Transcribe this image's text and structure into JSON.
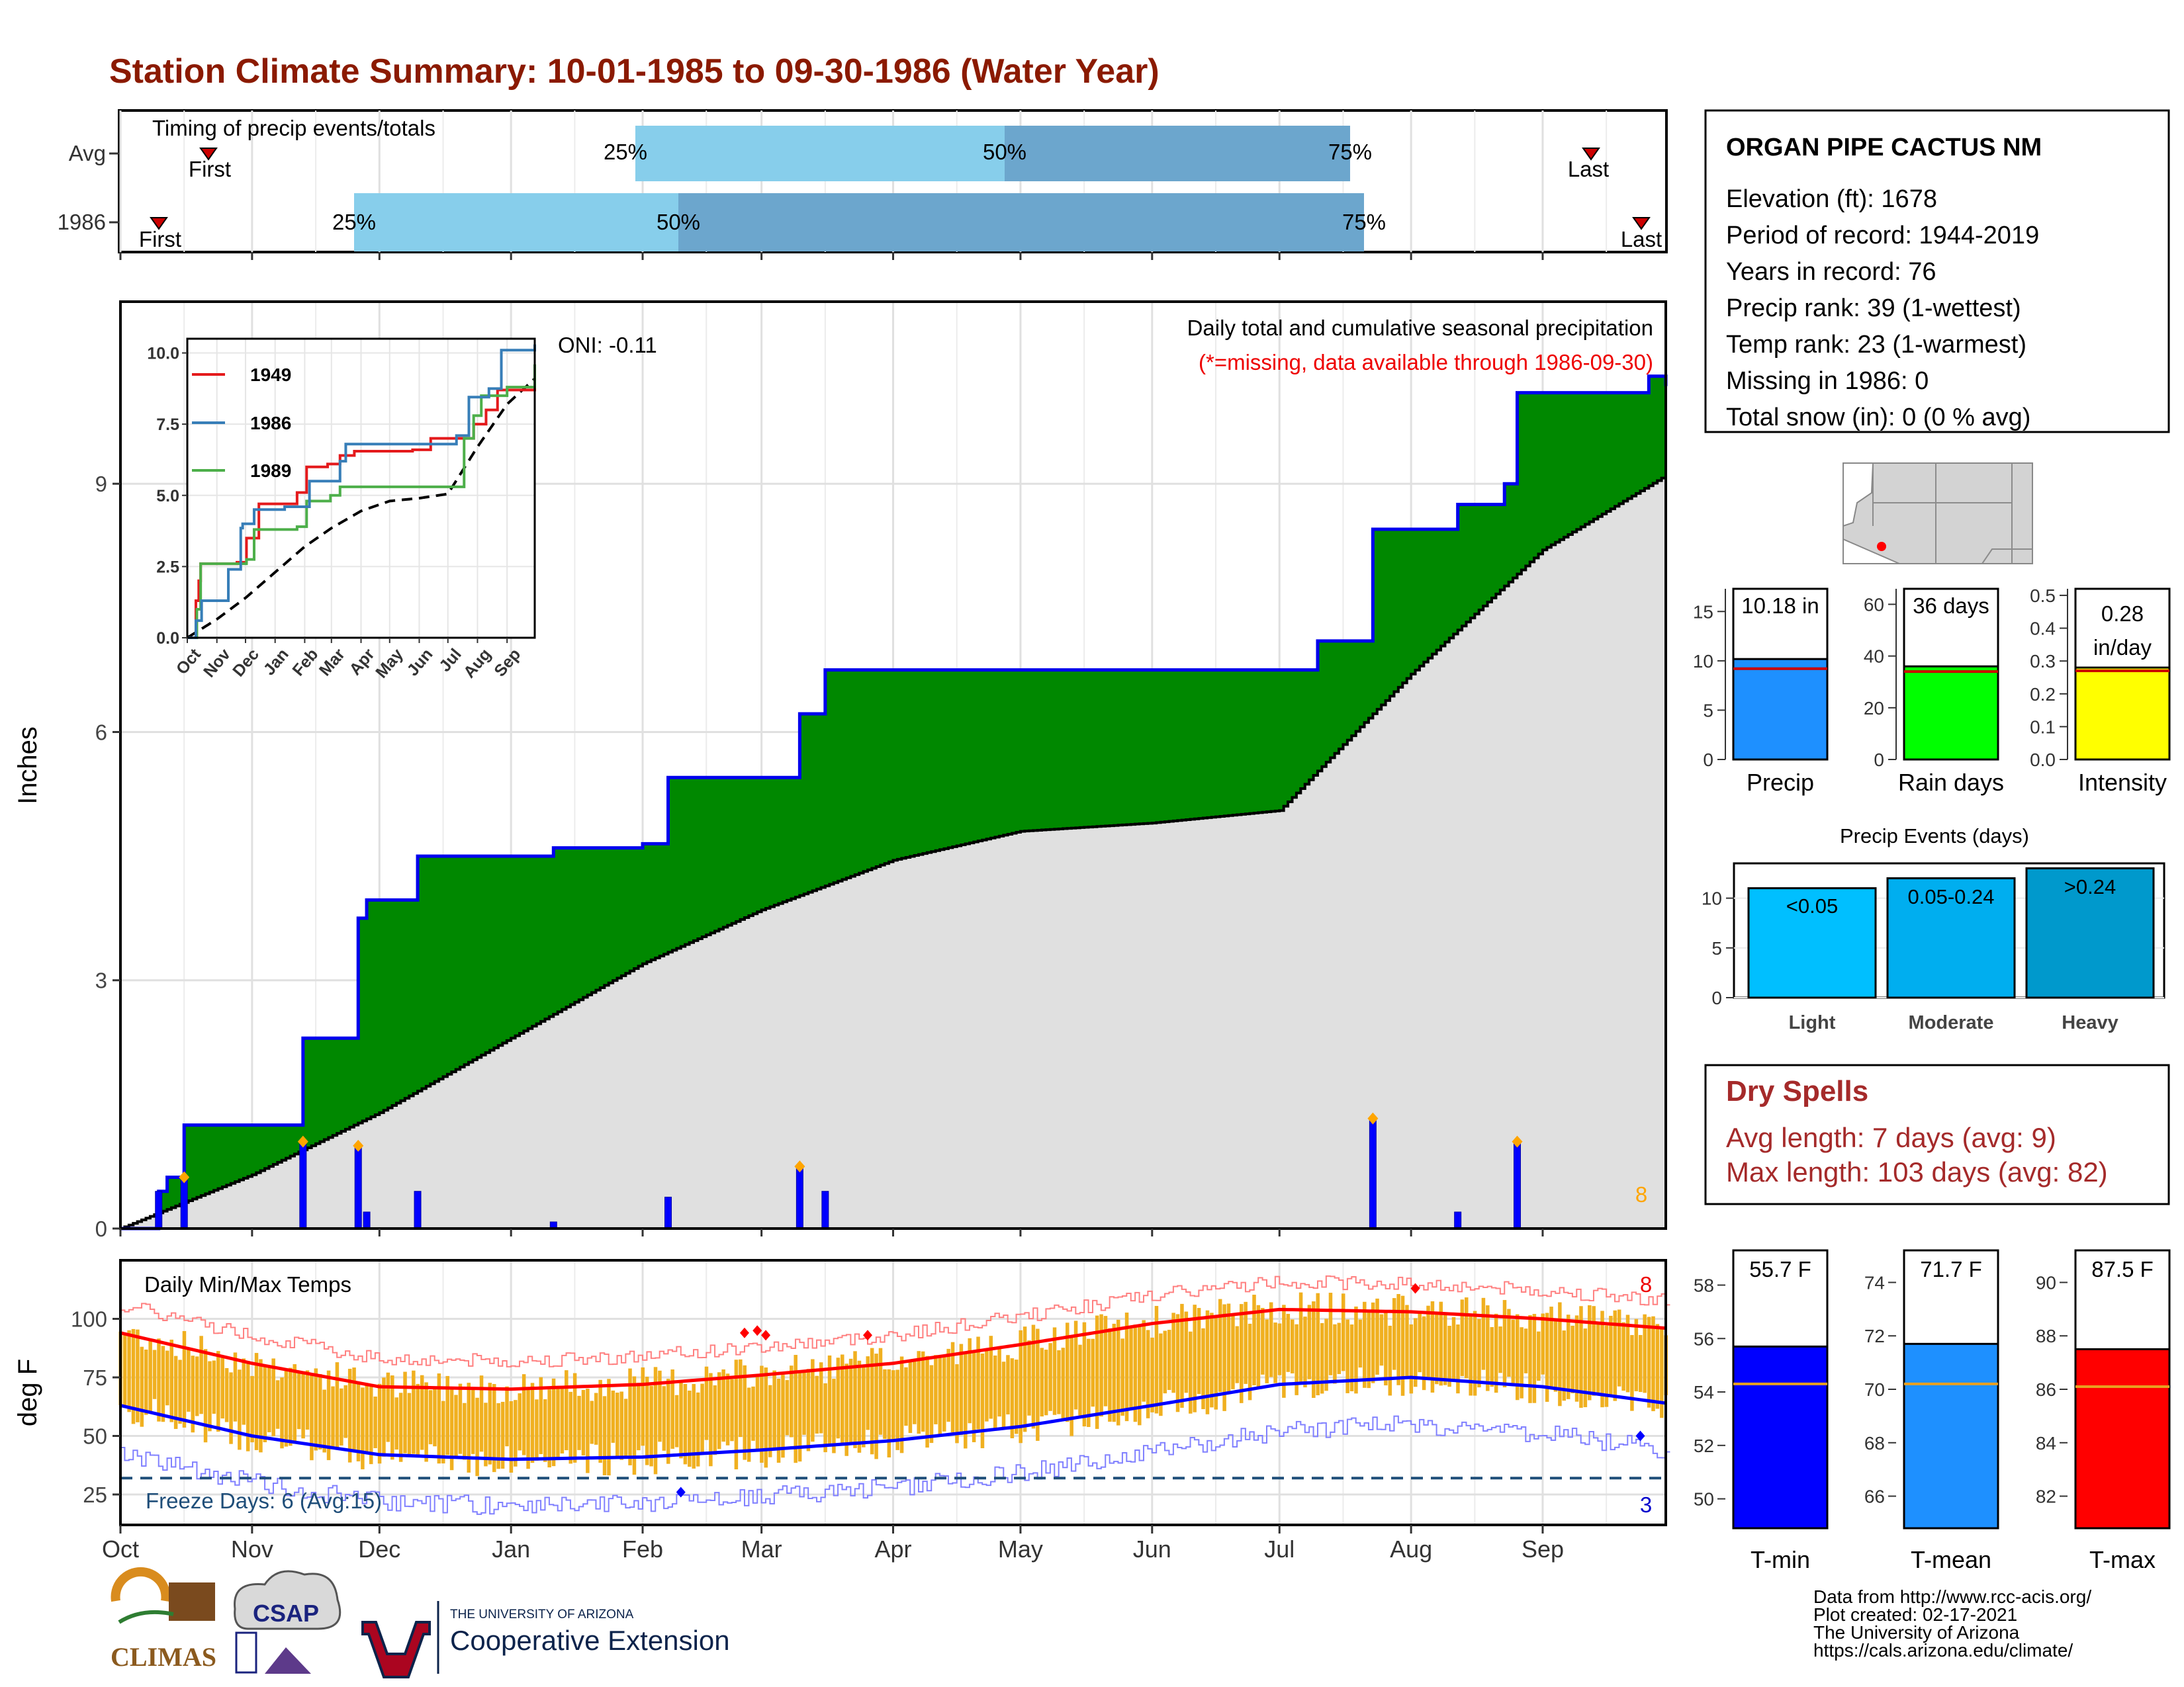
{
  "title": "Station Climate Summary: 10-01-1985 to 09-30-1986 (Water Year)",
  "timing": {
    "label": "Timing of precip events/totals",
    "rows": [
      {
        "name": "Avg",
        "first_label": "First",
        "last_label": "Last",
        "p25": "25%",
        "p50": "50%",
        "p75": "75%"
      },
      {
        "name": "1986",
        "first_label": "First",
        "last_label": "Last",
        "p25": "25%",
        "p50": "50%",
        "p75": "75%"
      }
    ]
  },
  "station": {
    "name": "ORGAN PIPE CACTUS NM",
    "lines": [
      "Elevation (ft): 1678",
      "Period of record: 1944-2019",
      "Years in record: 76",
      "Precip rank: 39 (1-wettest)",
      "Temp rank: 23 (1-warmest)",
      "Missing in 1986: 0",
      "Total snow (in): 0 (0 % avg)"
    ]
  },
  "precip_panel": {
    "ylabel": "Inches",
    "caption": "Daily total and cumulative seasonal precipitation",
    "missing_note": "(*=missing, data available through 1986-09-30)",
    "oni": "ONI: -0.11",
    "extreme_count": "8"
  },
  "inset": {
    "series": [
      {
        "name": "1949",
        "color": "#e41a1c"
      },
      {
        "name": "1986",
        "color": "#377eb8"
      },
      {
        "name": "1989",
        "color": "#4daf4a"
      }
    ],
    "months": [
      "Oct",
      "Nov",
      "Dec",
      "Jan",
      "Feb",
      "Mar",
      "Apr",
      "May",
      "Jun",
      "Jul",
      "Aug",
      "Sep"
    ]
  },
  "temp_panel": {
    "ylabel": "deg F",
    "label": "Daily Min/Max Temps",
    "freeze": "Freeze Days: 6 (Avg:15)",
    "max_count": "8",
    "min_count": "3"
  },
  "months": [
    "Oct",
    "Nov",
    "Dec",
    "Jan",
    "Feb",
    "Mar",
    "Apr",
    "May",
    "Jun",
    "Jul",
    "Aug",
    "Sep"
  ],
  "summary_bars": {
    "precip": {
      "label": "Precip",
      "value_label": "10.18 in",
      "value": 10.18,
      "avg": 9.2,
      "color": "#1e90ff"
    },
    "rain_days": {
      "label": "Rain days",
      "value_label": "36 days",
      "value": 36,
      "avg": 34,
      "color": "#00ff00"
    },
    "intensity": {
      "label": "Intensity",
      "value_label_1": "0.28",
      "value_label_2": "in/day",
      "value": 0.28,
      "avg": 0.27,
      "color": "#ffff00"
    }
  },
  "events": {
    "title": "Precip Events (days)",
    "bars": [
      {
        "name": "Light",
        "label": "<0.05",
        "value": 11,
        "color": "#00bfff"
      },
      {
        "name": "Moderate",
        "label": "0.05-0.24",
        "value": 12,
        "color": "#00aeef"
      },
      {
        "name": "Heavy",
        "label": ">0.24",
        "value": 13,
        "color": "#0099cc"
      }
    ]
  },
  "dry_spells": {
    "title": "Dry Spells",
    "avg": "Avg length: 7 days (avg: 9)",
    "max": "Max length: 103 days (avg: 82)"
  },
  "temp_bars": [
    {
      "name": "T-min",
      "label": "55.7 F",
      "value": 55.7,
      "avg": 54.3,
      "color": "#0000ff"
    },
    {
      "name": "T-mean",
      "label": "71.7 F",
      "value": 71.7,
      "avg": 70.2,
      "color": "#1e90ff"
    },
    {
      "name": "T-max",
      "label": "87.5 F",
      "value": 87.5,
      "avg": 86.1,
      "color": "#ff0000"
    }
  ],
  "footer": {
    "lines": [
      "Data from http://www.rcc-acis.org/",
      "Plot created: 02-17-2021",
      "The University of Arizona",
      "https://cals.arizona.edu/climate/"
    ],
    "logo_climas": "CLIMAS",
    "logo_csap": "CSAP",
    "ua_small": "THE UNIVERSITY OF ARIZONA",
    "ua_big": "Cooperative Extension"
  },
  "chart_data": [
    {
      "type": "area",
      "title": "Daily total and cumulative seasonal precipitation",
      "ylabel": "Inches",
      "ylim": [
        0,
        11.2
      ],
      "x_range": [
        "1985-10-01",
        "1986-09-30"
      ],
      "cumulative_1986": [
        {
          "x": "1985-10-01",
          "y": 0.0
        },
        {
          "x": "1985-10-10",
          "y": 0.45
        },
        {
          "x": "1985-10-12",
          "y": 0.62
        },
        {
          "x": "1985-10-16",
          "y": 1.25
        },
        {
          "x": "1985-11-13",
          "y": 2.3
        },
        {
          "x": "1985-11-26",
          "y": 3.75
        },
        {
          "x": "1985-11-28",
          "y": 3.97
        },
        {
          "x": "1985-12-10",
          "y": 4.5
        },
        {
          "x": "1986-01-11",
          "y": 4.6
        },
        {
          "x": "1986-02-01",
          "y": 4.65
        },
        {
          "x": "1986-02-07",
          "y": 5.45
        },
        {
          "x": "1986-03-10",
          "y": 6.22
        },
        {
          "x": "1986-03-16",
          "y": 6.75
        },
        {
          "x": "1986-07-10",
          "y": 7.1
        },
        {
          "x": "1986-07-23",
          "y": 8.45
        },
        {
          "x": "1986-08-06",
          "y": 8.45
        },
        {
          "x": "1986-08-12",
          "y": 8.75
        },
        {
          "x": "1986-08-23",
          "y": 9.0
        },
        {
          "x": "1986-08-26",
          "y": 10.1
        },
        {
          "x": "1986-09-26",
          "y": 10.3
        },
        {
          "x": "1986-09-30",
          "y": 10.18
        }
      ],
      "cumulative_avg": [
        {
          "x": "1985-10-01",
          "y": 0.0
        },
        {
          "x": "1985-11-01",
          "y": 0.65
        },
        {
          "x": "1985-12-01",
          "y": 1.4
        },
        {
          "x": "1986-01-01",
          "y": 2.3
        },
        {
          "x": "1986-02-01",
          "y": 3.2
        },
        {
          "x": "1986-03-01",
          "y": 3.85
        },
        {
          "x": "1986-04-01",
          "y": 4.45
        },
        {
          "x": "1986-05-01",
          "y": 4.8
        },
        {
          "x": "1986-06-01",
          "y": 4.9
        },
        {
          "x": "1986-07-01",
          "y": 5.05
        },
        {
          "x": "1986-08-01",
          "y": 6.7
        },
        {
          "x": "1986-09-01",
          "y": 8.2
        },
        {
          "x": "1986-09-30",
          "y": 9.1
        }
      ],
      "daily_precip": [
        {
          "x": "1985-10-10",
          "y": 0.45
        },
        {
          "x": "1985-10-16",
          "y": 0.62
        },
        {
          "x": "1985-11-13",
          "y": 1.05
        },
        {
          "x": "1985-11-26",
          "y": 1.0
        },
        {
          "x": "1985-11-28",
          "y": 0.2
        },
        {
          "x": "1985-12-10",
          "y": 0.45
        },
        {
          "x": "1986-01-11",
          "y": 0.08
        },
        {
          "x": "1986-02-07",
          "y": 0.38
        },
        {
          "x": "1986-03-10",
          "y": 0.75
        },
        {
          "x": "1986-03-16",
          "y": 0.45
        },
        {
          "x": "1986-07-23",
          "y": 1.33
        },
        {
          "x": "1986-08-12",
          "y": 0.2
        },
        {
          "x": "1986-08-26",
          "y": 1.05
        }
      ]
    },
    {
      "type": "line",
      "title": "Daily Min/Max Temps",
      "ylabel": "deg F",
      "ylim": [
        12,
        125
      ],
      "freeze_line": 32,
      "avg_max": [
        {
          "x": "1985-10-01",
          "y": 94
        },
        {
          "x": "1985-11-01",
          "y": 81
        },
        {
          "x": "1985-12-01",
          "y": 71
        },
        {
          "x": "1986-01-01",
          "y": 70
        },
        {
          "x": "1986-02-01",
          "y": 72
        },
        {
          "x": "1986-03-01",
          "y": 76
        },
        {
          "x": "1986-04-01",
          "y": 81
        },
        {
          "x": "1986-05-01",
          "y": 89
        },
        {
          "x": "1986-06-01",
          "y": 98
        },
        {
          "x": "1986-07-01",
          "y": 104
        },
        {
          "x": "1986-08-01",
          "y": 103
        },
        {
          "x": "1986-09-01",
          "y": 100
        },
        {
          "x": "1986-09-30",
          "y": 96
        }
      ],
      "avg_min": [
        {
          "x": "1985-10-01",
          "y": 63
        },
        {
          "x": "1985-11-01",
          "y": 50
        },
        {
          "x": "1985-12-01",
          "y": 42
        },
        {
          "x": "1986-01-01",
          "y": 40
        },
        {
          "x": "1986-02-01",
          "y": 41
        },
        {
          "x": "1986-03-01",
          "y": 44
        },
        {
          "x": "1986-04-01",
          "y": 48
        },
        {
          "x": "1986-05-01",
          "y": 54
        },
        {
          "x": "1986-06-01",
          "y": 63
        },
        {
          "x": "1986-07-01",
          "y": 72
        },
        {
          "x": "1986-08-01",
          "y": 75
        },
        {
          "x": "1986-09-01",
          "y": 71
        },
        {
          "x": "1986-09-30",
          "y": 64
        }
      ]
    }
  ]
}
